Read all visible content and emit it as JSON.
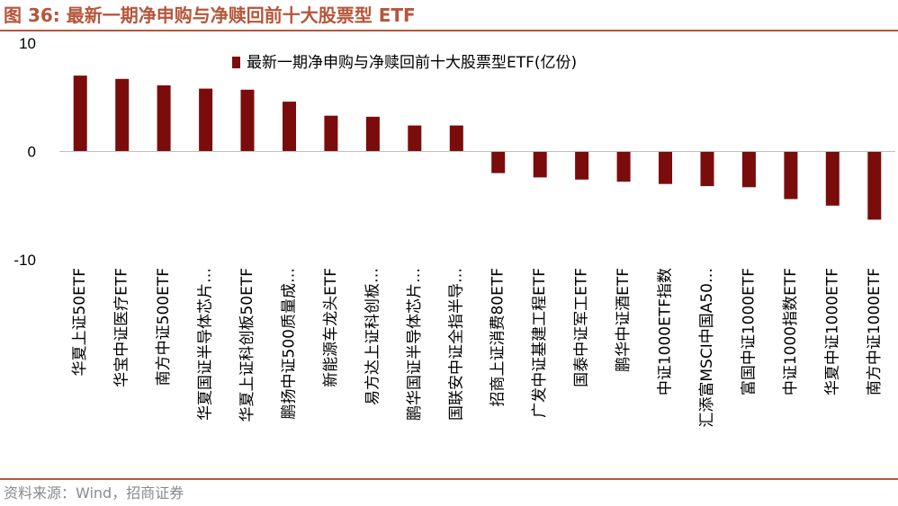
{
  "figure": {
    "title": "图 36:  最新一期净申购与净赎回前十大股票型 ETF",
    "source": "资料来源：Wind，招商证券"
  },
  "colors": {
    "accent": "#b5563a",
    "bar": "#7b0c0c",
    "axis": "#bfbfbf",
    "text": "#000000"
  },
  "chart_data": {
    "type": "bar",
    "categories": [
      "华夏上证50ETF",
      "华宝中证医疗ETF",
      "南方中证500ETF",
      "华夏国证半导体芯片…",
      "华夏上证科创板50ETF",
      "鹏扬中证500质量成…",
      "新能源车龙头ETF",
      "易方达上证科创板…",
      "鹏华国证半导体芯片…",
      "国联安中证全指半导…",
      "招商上证消费80ETF",
      "广发中证基建工程ETF",
      "国泰中证军工ETF",
      "鹏华中证酒ETF",
      "中证1000ETF指数",
      "汇添富MSCI中国A50…",
      "富国中证1000ETF",
      "中证1000指数ETF",
      "华夏中证1000ETF",
      "南方中证1000ETF"
    ],
    "series": [
      {
        "name": "最新一期净申购与净赎回前十大股票型ETF(亿份)",
        "values": [
          7.0,
          6.7,
          6.1,
          5.8,
          5.7,
          4.6,
          3.3,
          3.2,
          2.4,
          2.4,
          -2.0,
          -2.4,
          -2.6,
          -2.8,
          -3.0,
          -3.2,
          -3.3,
          -4.4,
          -5.0,
          -6.3
        ]
      }
    ],
    "yticks": [
      10,
      0,
      -10
    ],
    "ylim": [
      -10,
      10
    ],
    "legend_position": "top-right",
    "grid": false
  }
}
